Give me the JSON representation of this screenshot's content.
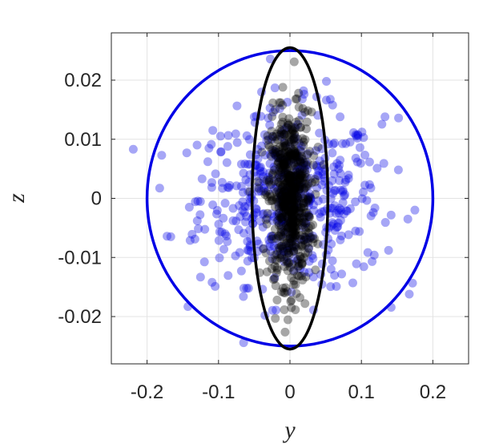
{
  "chart_data": {
    "type": "scatter",
    "title": "",
    "xlabel": "y",
    "ylabel": "z",
    "xlim": [
      -0.25,
      0.25
    ],
    "ylim": [
      -0.028,
      0.028
    ],
    "xticks": [
      -0.2,
      -0.1,
      0,
      0.1,
      0.2
    ],
    "xtick_labels": [
      "-0.2",
      "-0.1",
      "0",
      "0.1",
      "0.2"
    ],
    "yticks": [
      -0.02,
      -0.01,
      0,
      0.01,
      0.02
    ],
    "ytick_labels": [
      "-0.02",
      "-0.01",
      "0",
      "0.01",
      "0.02"
    ],
    "grid": true,
    "colors": {
      "blue": "#0000e6",
      "black": "#000000",
      "grid": "#e3e3e3",
      "axes": "#262626"
    },
    "ellipses": [
      {
        "name": "",
        "color": "#0000e6",
        "center": [
          0,
          0
        ],
        "radius_y": 0.2,
        "radius_z": 0.025
      },
      {
        "name": "",
        "color": "#000000",
        "center": [
          0,
          0
        ],
        "radius_y": 0.053,
        "radius_z": 0.0255
      }
    ],
    "series": [
      {
        "name": "",
        "color": "#0000e6",
        "sigma": [
          0.063,
          0.0072
        ],
        "count": 500,
        "points": [
          [
            -0.172,
            -0.0064
          ],
          [
            0.165,
            -0.0035
          ],
          [
            0.167,
            -0.0162
          ],
          [
            0.133,
            0.0138
          ],
          [
            0.152,
            0.0136
          ],
          [
            -0.108,
            0.0115
          ],
          [
            -0.05,
            0.0138
          ],
          [
            0.115,
            -0.0107
          ],
          [
            0.118,
            -0.0096
          ],
          [
            0.088,
            -0.0143
          ],
          [
            -0.109,
            -0.0142
          ],
          [
            -0.133,
            -0.0069
          ],
          [
            0.051,
            0.0198
          ],
          [
            -0.021,
            0.0187
          ],
          [
            0.019,
            0.0182
          ],
          [
            -0.035,
            -0.0198
          ],
          [
            0.033,
            -0.0189
          ],
          [
            0.098,
            0.0086
          ],
          [
            -0.087,
            0.0088
          ],
          [
            0.122,
            0.0051
          ],
          [
            -0.123,
            0.0033
          ],
          [
            -0.058,
            -0.0152
          ],
          [
            0.065,
            -0.0149
          ],
          [
            0.138,
            -0.0088
          ],
          [
            -0.115,
            0.0062
          ]
        ]
      },
      {
        "name": "",
        "color": "#000000",
        "sigma": [
          0.015,
          0.0072
        ],
        "count": 600,
        "points": [
          [
            0.006,
            0.0231
          ],
          [
            -0.01,
            0.0188
          ],
          [
            0.012,
            0.0178
          ],
          [
            -0.015,
            0.0162
          ],
          [
            0.018,
            0.0152
          ],
          [
            -0.012,
            -0.0158
          ],
          [
            0.014,
            -0.0168
          ],
          [
            -0.018,
            -0.0172
          ],
          [
            0.002,
            -0.0185
          ],
          [
            0.021,
            -0.0178
          ],
          [
            -0.006,
            -0.0151
          ],
          [
            0.008,
            0.0168
          ]
        ]
      }
    ]
  }
}
